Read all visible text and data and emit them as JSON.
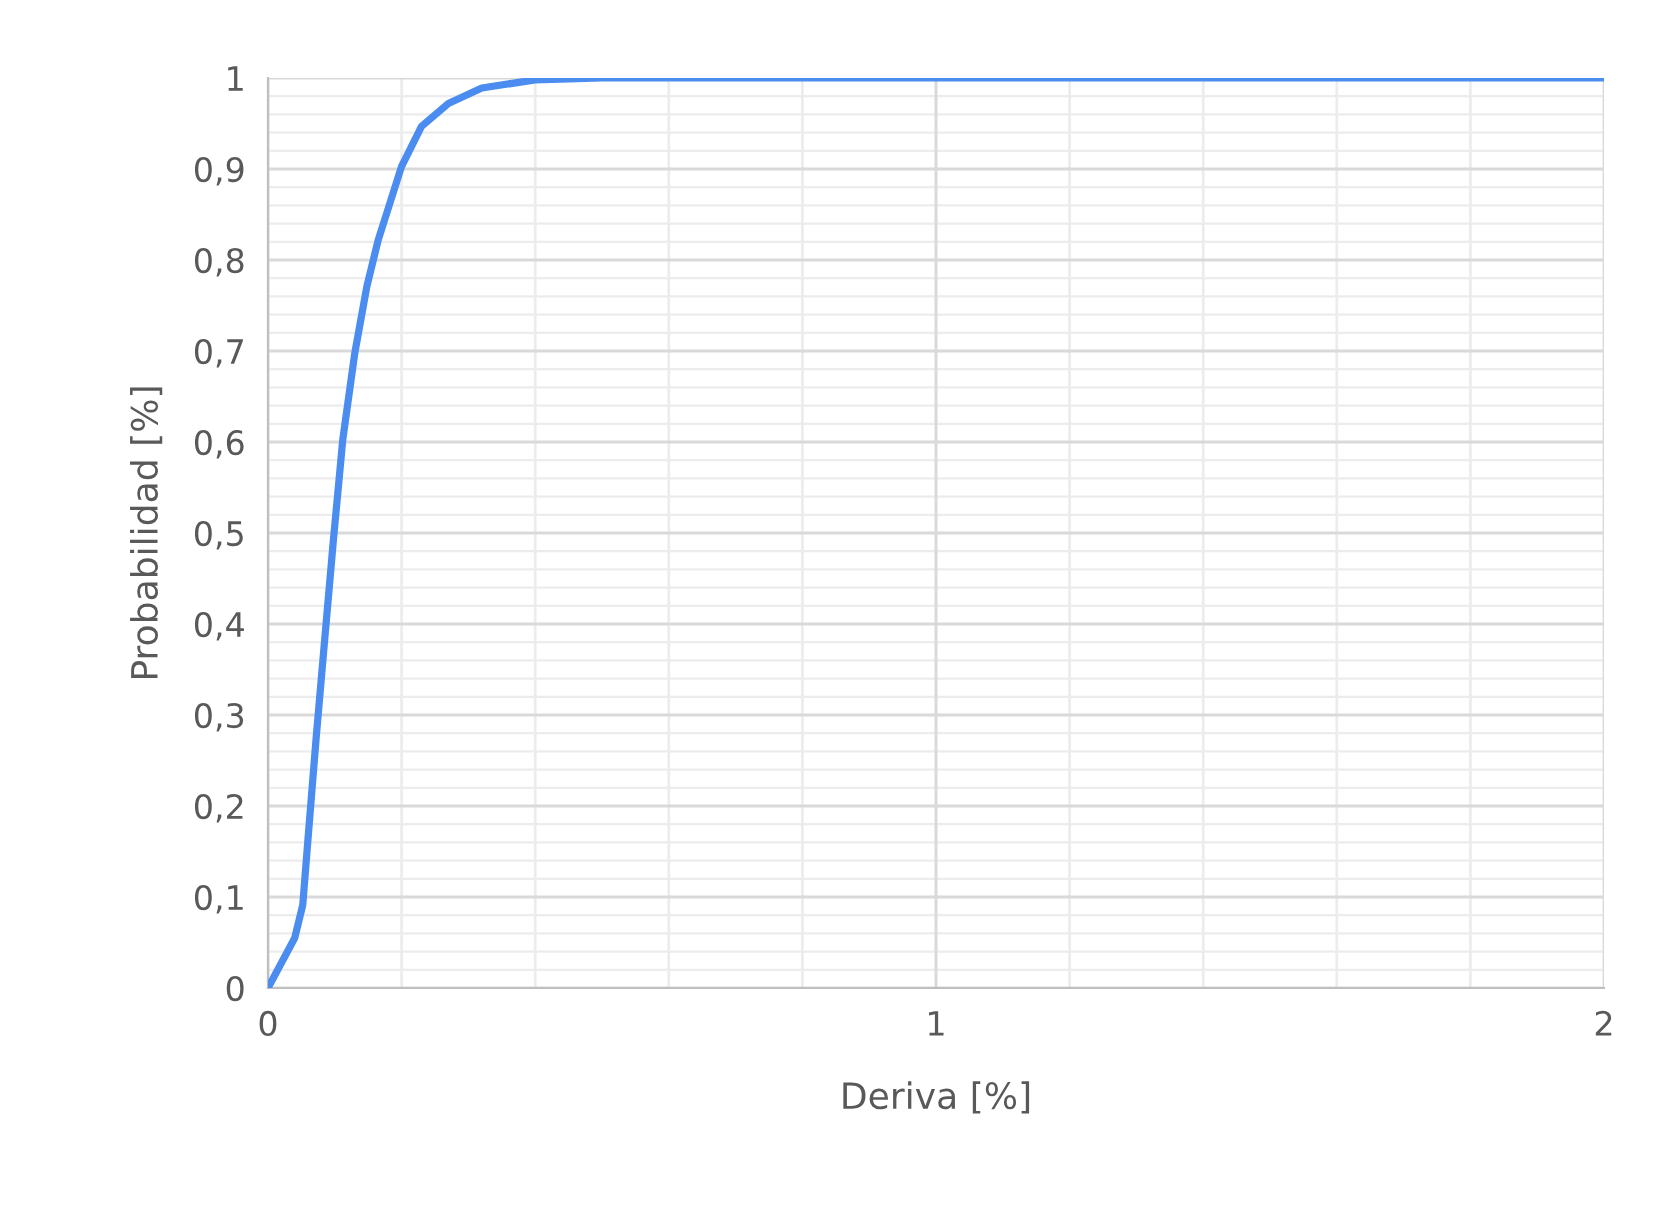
{
  "chart_data": {
    "type": "line",
    "xlabel": "Deriva [%]",
    "ylabel": "Probabilidad [%]",
    "xlim": [
      0,
      2
    ],
    "ylim": [
      0,
      1
    ],
    "xticks": [
      0,
      1,
      2
    ],
    "yticks": [
      {
        "value": 0,
        "label": "0"
      },
      {
        "value": 0.1,
        "label": "0,1"
      },
      {
        "value": 0.2,
        "label": "0,2"
      },
      {
        "value": 0.3,
        "label": "0,3"
      },
      {
        "value": 0.4,
        "label": "0,4"
      },
      {
        "value": 0.5,
        "label": "0,5"
      },
      {
        "value": 0.6,
        "label": "0,6"
      },
      {
        "value": 0.7,
        "label": "0,7"
      },
      {
        "value": 0.8,
        "label": "0,8"
      },
      {
        "value": 0.9,
        "label": "0,9"
      },
      {
        "value": 1,
        "label": "1"
      }
    ],
    "grid": true,
    "marker": "none",
    "line_style": "solid",
    "series": [
      {
        "color": "#4a8cf0",
        "x": [
          0,
          0.04,
          0.052,
          0.06,
          0.072,
          0.085,
          0.098,
          0.112,
          0.13,
          0.148,
          0.165,
          0.2,
          0.23,
          0.27,
          0.32,
          0.4,
          0.5,
          1,
          1.5,
          2
        ],
        "values": [
          0,
          0.055,
          0.091,
          0.165,
          0.274,
          0.384,
          0.493,
          0.603,
          0.698,
          0.771,
          0.822,
          0.903,
          0.947,
          0.972,
          0.989,
          0.998,
          1,
          1,
          1,
          1
        ]
      }
    ]
  }
}
